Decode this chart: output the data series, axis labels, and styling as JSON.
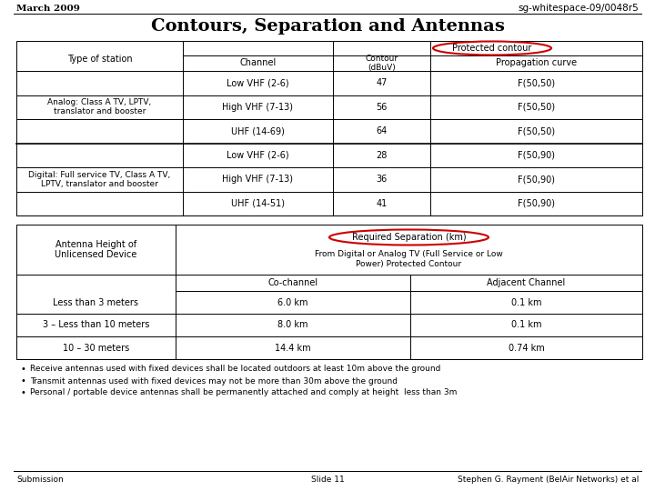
{
  "header_left": "March 2009",
  "header_right": "sg-whitespace-09/0048r5",
  "title": "Contours, Separation and Antennas",
  "table1": {
    "protected_contour_label": "Protected contour",
    "rows": [
      [
        "Analog: Class A TV, LPTV,\ntranslator and booster",
        "Low VHF (2-6)",
        "47",
        "F(50,50)"
      ],
      [
        "",
        "High VHF (7-13)",
        "56",
        "F(50,50)"
      ],
      [
        "",
        "UHF (14-69)",
        "64",
        "F(50,50)"
      ],
      [
        "Digital: Full service TV, Class A TV,\nLPTV, translator and booster",
        "Low VHF (2-6)",
        "28",
        "F(50,90)"
      ],
      [
        "",
        "High VHF (7-13)",
        "36",
        "F(50,90)"
      ],
      [
        "",
        "UHF (14-51)",
        "41",
        "F(50,90)"
      ]
    ]
  },
  "table2": {
    "req_sep_label": "Required Separation (km)",
    "col1_header": "Antenna Height of\nUnlicensed Device",
    "col2_header": "From Digital or Analog TV (Full Service or Low\nPower) Protected Contour",
    "subcol_headers": [
      "Co-channel",
      "Adjacent Channel"
    ],
    "rows": [
      [
        "Less than 3 meters",
        "6.0 km",
        "0.1 km"
      ],
      [
        "3 – Less than 10 meters",
        "8.0 km",
        "0.1 km"
      ],
      [
        "10 – 30 meters",
        "14.4 km",
        "0.74 km"
      ]
    ]
  },
  "bullets": [
    "Receive antennas used with fixed devices shall be located outdoors at least 10m above the ground",
    "Transmit antennas used with fixed devices may not be more than 30m above the ground",
    "Personal / portable device antennas shall be permanently attached and comply at height  less than 3m"
  ],
  "footer_left": "Submission",
  "footer_center": "Slide 11",
  "footer_right": "Stephen G. Rayment (BelAir Networks) et al",
  "bg": "#ffffff",
  "line_color": "#000000",
  "red_color": "#cc0000"
}
